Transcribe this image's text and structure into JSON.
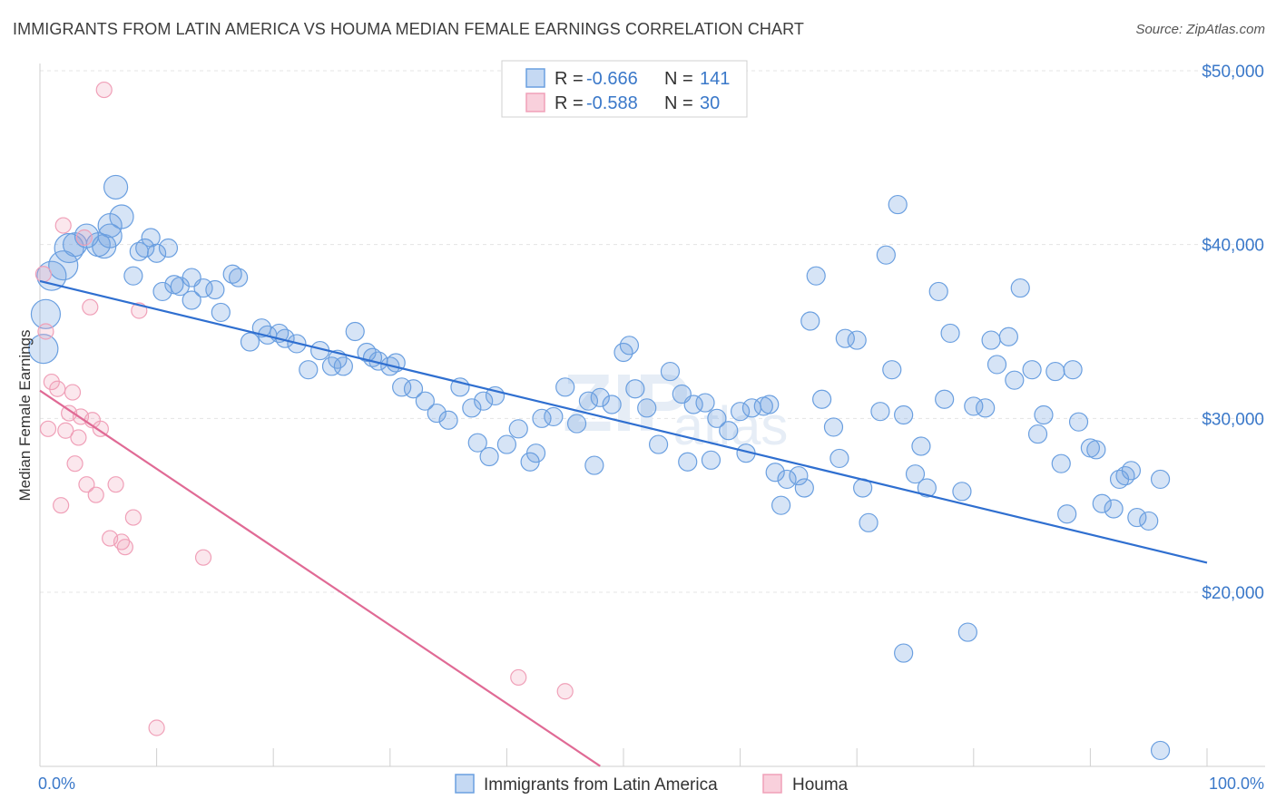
{
  "title": "IMMIGRANTS FROM LATIN AMERICA VS HOUMA MEDIAN FEMALE EARNINGS CORRELATION CHART",
  "source": "Source: ZipAtlas.com",
  "colors": {
    "blue": "#6a9fe0",
    "blue_line": "#2f6fd0",
    "pink": "#f0a0b8",
    "pink_line": "#e06a95",
    "tick": "#3a78c9"
  },
  "chart_data": {
    "type": "scatter",
    "ylabel": "Median Female Earnings",
    "x_ticks": [
      "0.0%",
      "100.0%"
    ],
    "y_ticks": [
      {
        "label": "$20,000",
        "value": 20000
      },
      {
        "label": "$30,000",
        "value": 30000
      },
      {
        "label": "$40,000",
        "value": 40000
      },
      {
        "label": "$50,000",
        "value": 50000
      }
    ],
    "xlim": [
      0,
      100
    ],
    "ylim": [
      10000,
      51000
    ],
    "legend": {
      "rows": [
        {
          "r_label": "R =",
          "r": "-0.666",
          "n_label": "N =",
          "n": "141"
        },
        {
          "r_label": "R =",
          "r": "-0.588",
          "n_label": "N =",
          "n": "30"
        }
      ]
    },
    "series": [
      {
        "name": "Immigrants from Latin America",
        "trend": {
          "x": [
            0,
            100
          ],
          "y": [
            37900,
            21700
          ]
        },
        "points": [
          [
            0.5,
            36000
          ],
          [
            0.3,
            34000
          ],
          [
            1,
            38200
          ],
          [
            2,
            38800
          ],
          [
            2.5,
            39800
          ],
          [
            3,
            40000
          ],
          [
            4,
            40500
          ],
          [
            5,
            40000
          ],
          [
            6,
            41100
          ],
          [
            6,
            40500
          ],
          [
            5.5,
            39900
          ],
          [
            7,
            41600
          ],
          [
            6.5,
            43300
          ],
          [
            8,
            38200
          ],
          [
            9,
            39800
          ],
          [
            10,
            39500
          ],
          [
            8.5,
            39600
          ],
          [
            9.5,
            40400
          ],
          [
            11,
            39800
          ],
          [
            12,
            37600
          ],
          [
            13,
            38100
          ],
          [
            14,
            37500
          ],
          [
            11.5,
            37700
          ],
          [
            10.5,
            37300
          ],
          [
            13,
            36800
          ],
          [
            15,
            37400
          ],
          [
            17,
            38100
          ],
          [
            16.5,
            38300
          ],
          [
            15.5,
            36100
          ],
          [
            18,
            34400
          ],
          [
            19,
            35200
          ],
          [
            19.5,
            34800
          ],
          [
            20.5,
            34900
          ],
          [
            21,
            34600
          ],
          [
            22,
            34300
          ],
          [
            24,
            33900
          ],
          [
            23,
            32800
          ],
          [
            25,
            33000
          ],
          [
            25.5,
            33400
          ],
          [
            26,
            33000
          ],
          [
            27,
            35000
          ],
          [
            28,
            33800
          ],
          [
            29,
            33300
          ],
          [
            30,
            33000
          ],
          [
            30.5,
            33200
          ],
          [
            28.5,
            33500
          ],
          [
            31,
            31800
          ],
          [
            32,
            31700
          ],
          [
            33,
            31000
          ],
          [
            34,
            30300
          ],
          [
            35,
            29900
          ],
          [
            36,
            31800
          ],
          [
            37,
            30600
          ],
          [
            38,
            31000
          ],
          [
            39,
            31300
          ],
          [
            37.5,
            28600
          ],
          [
            38.5,
            27800
          ],
          [
            40,
            28500
          ],
          [
            41,
            29400
          ],
          [
            42,
            27500
          ],
          [
            42.5,
            28000
          ],
          [
            43,
            30000
          ],
          [
            44,
            30100
          ],
          [
            45,
            31800
          ],
          [
            46,
            29700
          ],
          [
            47,
            31000
          ],
          [
            47.5,
            27300
          ],
          [
            48,
            31200
          ],
          [
            49,
            30800
          ],
          [
            50,
            33800
          ],
          [
            50.5,
            34200
          ],
          [
            51,
            31700
          ],
          [
            52,
            30600
          ],
          [
            53,
            28500
          ],
          [
            54,
            32700
          ],
          [
            55,
            31400
          ],
          [
            55.5,
            27500
          ],
          [
            56,
            30800
          ],
          [
            57,
            30900
          ],
          [
            57.5,
            27600
          ],
          [
            58,
            30000
          ],
          [
            59,
            29300
          ],
          [
            60,
            30400
          ],
          [
            60.5,
            28000
          ],
          [
            61,
            30600
          ],
          [
            62,
            30700
          ],
          [
            62.5,
            30800
          ],
          [
            63,
            26900
          ],
          [
            63.5,
            25000
          ],
          [
            64,
            26500
          ],
          [
            65,
            26700
          ],
          [
            65.5,
            26000
          ],
          [
            66,
            35600
          ],
          [
            66.5,
            38200
          ],
          [
            67,
            31100
          ],
          [
            68,
            29500
          ],
          [
            68.5,
            27700
          ],
          [
            69,
            34600
          ],
          [
            70,
            34500
          ],
          [
            70.5,
            26000
          ],
          [
            71,
            24000
          ],
          [
            72,
            30400
          ],
          [
            72.5,
            39400
          ],
          [
            73,
            32800
          ],
          [
            73.5,
            42300
          ],
          [
            74,
            30200
          ],
          [
            75,
            26800
          ],
          [
            75.5,
            28400
          ],
          [
            76,
            26000
          ],
          [
            77,
            37300
          ],
          [
            77.5,
            31100
          ],
          [
            78,
            34900
          ],
          [
            79,
            25800
          ],
          [
            79.5,
            17700
          ],
          [
            80,
            30700
          ],
          [
            81,
            30600
          ],
          [
            81.5,
            34500
          ],
          [
            82,
            33100
          ],
          [
            83,
            34700
          ],
          [
            83.5,
            32200
          ],
          [
            84,
            37500
          ],
          [
            85,
            32800
          ],
          [
            85.5,
            29100
          ],
          [
            86,
            30200
          ],
          [
            87,
            32700
          ],
          [
            87.5,
            27400
          ],
          [
            88,
            24500
          ],
          [
            88.5,
            32800
          ],
          [
            89,
            29800
          ],
          [
            90,
            28300
          ],
          [
            90.5,
            28200
          ],
          [
            91,
            25100
          ],
          [
            92,
            24800
          ],
          [
            92.5,
            26500
          ],
          [
            93,
            26700
          ],
          [
            93.5,
            27000
          ],
          [
            94,
            24300
          ],
          [
            95,
            24100
          ],
          [
            96,
            26500
          ],
          [
            74,
            16500
          ],
          [
            96,
            10900
          ]
        ],
        "sizes": "large points near origin"
      },
      {
        "name": "Houma",
        "trend": {
          "x": [
            0,
            48
          ],
          "y": [
            31600,
            10000
          ]
        },
        "points": [
          [
            0.3,
            38300
          ],
          [
            0.5,
            35000
          ],
          [
            0.7,
            29400
          ],
          [
            1,
            32100
          ],
          [
            1.5,
            31700
          ],
          [
            1.8,
            25000
          ],
          [
            2,
            41100
          ],
          [
            2.2,
            29300
          ],
          [
            2.5,
            30300
          ],
          [
            2.8,
            31500
          ],
          [
            3,
            27400
          ],
          [
            3.3,
            28900
          ],
          [
            3.5,
            30100
          ],
          [
            3.8,
            40400
          ],
          [
            4,
            26200
          ],
          [
            4.3,
            36400
          ],
          [
            4.5,
            29900
          ],
          [
            4.8,
            25600
          ],
          [
            5.2,
            29400
          ],
          [
            5.5,
            48900
          ],
          [
            6,
            23100
          ],
          [
            6.5,
            26200
          ],
          [
            7,
            22900
          ],
          [
            7.3,
            22600
          ],
          [
            8,
            24300
          ],
          [
            8.5,
            36200
          ],
          [
            10,
            12200
          ],
          [
            14,
            22000
          ],
          [
            41,
            15100
          ],
          [
            45,
            14300
          ]
        ]
      }
    ],
    "watermark": "ZIPatlas"
  }
}
